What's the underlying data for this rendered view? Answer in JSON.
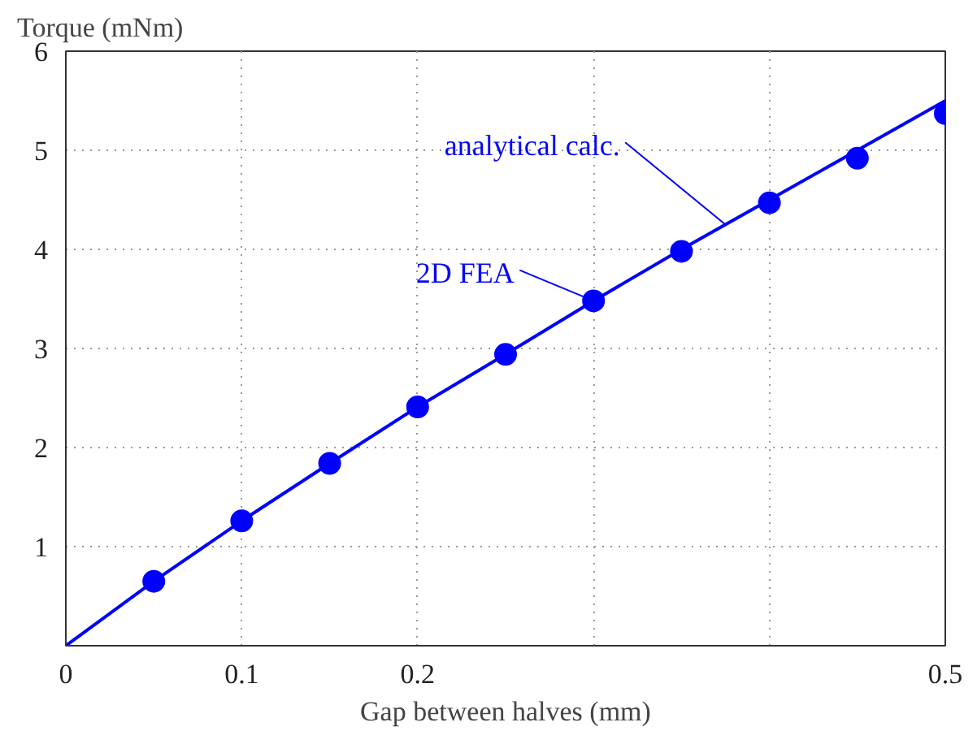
{
  "chart_data": {
    "type": "line",
    "ylabel": "Torque (mNm)",
    "xlabel": "Gap between halves (mm)",
    "xlim": [
      0,
      0.5
    ],
    "ylim": [
      0,
      6
    ],
    "xticks": [
      0,
      0.1,
      0.2,
      {
        "value": 0.3,
        "label": null
      },
      {
        "value": 0.4,
        "label": null
      },
      0.5
    ],
    "yticks": [
      {
        "value": 0,
        "label": null
      },
      1,
      2,
      3,
      4,
      5,
      6
    ],
    "grid": true,
    "series": [
      {
        "color": "#0000ff",
        "marker": "none",
        "line_style": "solid",
        "x": [
          0,
          0.05,
          0.1,
          0.15,
          0.2,
          0.25,
          0.3,
          0.35,
          0.4,
          0.45,
          0.5
        ],
        "values": [
          0,
          0.65,
          1.26,
          1.84,
          2.41,
          2.94,
          3.48,
          4.0,
          4.5,
          5.0,
          5.5
        ]
      },
      {
        "type": "scatter",
        "color": "#0000ff",
        "marker": "circle",
        "x": [
          0.05,
          0.1,
          0.15,
          0.2,
          0.25,
          0.3,
          0.35,
          0.4,
          0.45,
          0.5
        ],
        "values": [
          0.65,
          1.26,
          1.84,
          2.41,
          2.94,
          3.48,
          3.98,
          4.47,
          4.92,
          5.37
        ]
      }
    ],
    "annotations": [
      {
        "text": "analytical calc.",
        "x": 0.375,
        "y": 4.25
      },
      {
        "text": "2D FEA",
        "x": 0.3,
        "y": 3.48
      }
    ]
  }
}
